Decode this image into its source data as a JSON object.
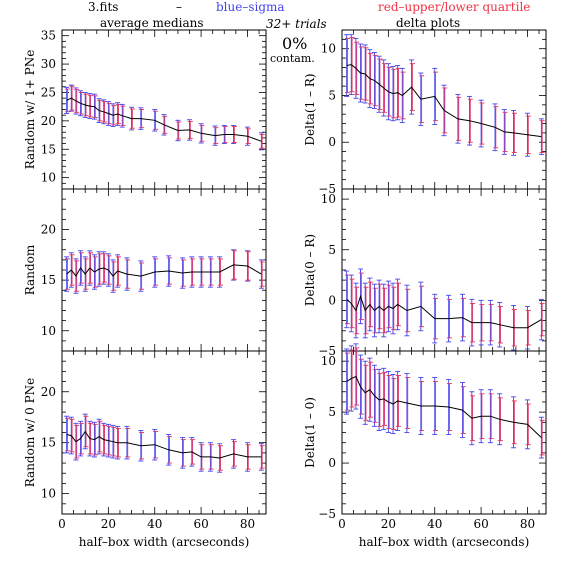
{
  "header": {
    "file_label": "3.fits",
    "dash": "–",
    "blue_label": "blue–sigma",
    "red_label": "red–upper/lower quartile",
    "left_title": "average medians",
    "right_title": "delta plots",
    "trials": "32+ trials",
    "percent": "0%",
    "contam": "contam."
  },
  "colors": {
    "line": "#000000",
    "blue": "#4444ee",
    "red": "#dd3366",
    "axis": "#000000"
  },
  "xlabel": "half–box width (arcseconds)",
  "chart_data": [
    {
      "type": "line",
      "column": "left",
      "row": 0,
      "ylabel": "Random w/ 1+ PNe",
      "xlim": [
        0,
        88
      ],
      "ylim": [
        8,
        36
      ],
      "xticks": [
        0,
        20,
        40,
        60,
        80
      ],
      "yticks": [
        10,
        15,
        20,
        25,
        30,
        35
      ],
      "x": [
        2,
        4,
        6,
        8,
        10,
        12,
        14,
        16,
        18,
        20,
        22,
        24,
        26,
        30,
        34,
        40,
        44,
        50,
        55,
        60,
        66,
        70,
        74,
        80,
        86
      ],
      "y": [
        23.6,
        24.0,
        23.5,
        23.1,
        22.8,
        22.6,
        22.5,
        21.8,
        21.6,
        21.3,
        21.0,
        21.2,
        20.9,
        20.4,
        20.4,
        20.1,
        19.3,
        18.3,
        18.4,
        17.8,
        17.4,
        17.6,
        17.6,
        17.3,
        16.4
      ],
      "sigma_err": [
        2.3,
        2.3,
        2.3,
        2.2,
        2.2,
        2.2,
        2.2,
        2.1,
        2.1,
        2.1,
        2.0,
        2.0,
        2.0,
        2.0,
        1.9,
        1.9,
        1.8,
        1.8,
        1.8,
        1.7,
        1.7,
        1.6,
        1.6,
        1.6,
        1.5
      ],
      "quartile_err": [
        2.0,
        2.1,
        2.0,
        1.9,
        1.9,
        1.9,
        1.9,
        1.8,
        1.8,
        1.8,
        1.7,
        1.7,
        1.7,
        1.7,
        1.6,
        1.6,
        1.5,
        1.5,
        1.5,
        1.4,
        1.4,
        1.4,
        1.4,
        1.3,
        1.2
      ]
    },
    {
      "type": "line",
      "column": "left",
      "row": 1,
      "ylabel": "Random",
      "xlim": [
        0,
        88
      ],
      "ylim": [
        8,
        24
      ],
      "xticks": [
        0,
        20,
        40,
        60,
        80
      ],
      "yticks": [
        10,
        15,
        20
      ],
      "x": [
        2,
        4,
        6,
        8,
        10,
        12,
        14,
        16,
        18,
        20,
        22,
        24,
        28,
        34,
        40,
        46,
        52,
        56,
        60,
        64,
        68,
        74,
        80,
        86
      ],
      "y": [
        15.6,
        16.0,
        15.4,
        16.2,
        15.6,
        16.2,
        15.8,
        16.1,
        16.2,
        16.0,
        15.4,
        15.9,
        15.6,
        15.4,
        15.8,
        15.9,
        15.7,
        15.8,
        15.8,
        15.8,
        15.8,
        16.5,
        16.4,
        15.6
      ],
      "sigma_err": [
        1.7,
        1.7,
        1.7,
        1.7,
        1.7,
        1.7,
        1.7,
        1.7,
        1.6,
        1.6,
        1.6,
        1.6,
        1.6,
        1.5,
        1.5,
        1.5,
        1.5,
        1.5,
        1.5,
        1.5,
        1.5,
        1.5,
        1.5,
        1.4
      ],
      "quartile_err": [
        1.5,
        1.5,
        1.5,
        1.5,
        1.5,
        1.5,
        1.5,
        1.5,
        1.4,
        1.4,
        1.4,
        1.4,
        1.4,
        1.3,
        1.3,
        1.3,
        1.3,
        1.3,
        1.3,
        1.3,
        1.3,
        1.4,
        1.4,
        1.2
      ]
    },
    {
      "type": "line",
      "column": "left",
      "row": 2,
      "ylabel": "Random w/ 0 PNe",
      "xlim": [
        0,
        88
      ],
      "ylim": [
        8,
        24
      ],
      "xticks": [
        0,
        20,
        40,
        60,
        80
      ],
      "yticks": [
        10,
        15,
        20
      ],
      "x": [
        2,
        4,
        6,
        8,
        10,
        12,
        14,
        16,
        18,
        20,
        22,
        24,
        28,
        34,
        40,
        46,
        52,
        56,
        60,
        64,
        68,
        74,
        80,
        86
      ],
      "y": [
        15.8,
        15.7,
        15.1,
        15.4,
        16.1,
        15.4,
        15.3,
        15.6,
        15.3,
        15.2,
        15.1,
        15.0,
        15.0,
        14.7,
        14.8,
        14.3,
        14.0,
        14.1,
        13.6,
        13.6,
        13.5,
        13.9,
        13.6,
        13.6
      ],
      "sigma_err": [
        1.8,
        1.8,
        1.8,
        1.7,
        1.7,
        1.7,
        1.7,
        1.7,
        1.6,
        1.6,
        1.6,
        1.6,
        1.6,
        1.5,
        1.5,
        1.5,
        1.5,
        1.4,
        1.4,
        1.4,
        1.4,
        1.4,
        1.4,
        1.3
      ],
      "quartile_err": [
        1.6,
        1.6,
        1.6,
        1.5,
        1.5,
        1.5,
        1.5,
        1.5,
        1.4,
        1.4,
        1.4,
        1.4,
        1.4,
        1.3,
        1.3,
        1.3,
        1.3,
        1.2,
        1.2,
        1.2,
        1.2,
        1.2,
        1.2,
        1.1
      ]
    },
    {
      "type": "line",
      "column": "right",
      "row": 0,
      "ylabel": "Delta(1 – R)",
      "xlim": [
        0,
        88
      ],
      "ylim": [
        -5,
        12
      ],
      "xticks": [
        0,
        20,
        40,
        60,
        80
      ],
      "yticks": [
        -5,
        0,
        5,
        10
      ],
      "x": [
        2,
        4,
        6,
        8,
        10,
        12,
        14,
        16,
        18,
        20,
        22,
        24,
        26,
        30,
        34,
        40,
        44,
        50,
        55,
        60,
        66,
        70,
        74,
        80,
        86
      ],
      "y": [
        8.2,
        8.3,
        7.9,
        7.4,
        7.3,
        6.8,
        6.6,
        6.2,
        5.8,
        5.4,
        5.2,
        5.3,
        5.0,
        5.9,
        4.6,
        4.9,
        3.4,
        2.5,
        2.3,
        2.0,
        1.6,
        1.1,
        1.0,
        0.8,
        0.6
      ],
      "sigma_err": [
        3.3,
        3.2,
        3.2,
        3.1,
        3.1,
        3.1,
        3.0,
        3.0,
        3.0,
        3.0,
        2.9,
        2.9,
        2.9,
        2.9,
        2.8,
        3.0,
        2.7,
        2.6,
        2.6,
        2.5,
        2.5,
        2.4,
        2.4,
        2.3,
        1.9
      ],
      "quartile_err": [
        2.9,
        2.9,
        2.8,
        2.8,
        2.8,
        2.7,
        2.7,
        2.7,
        2.6,
        2.6,
        2.6,
        2.6,
        2.5,
        2.5,
        2.5,
        2.6,
        2.4,
        2.3,
        2.3,
        2.2,
        2.2,
        2.1,
        2.1,
        2.0,
        1.7
      ]
    },
    {
      "type": "line",
      "column": "right",
      "row": 1,
      "ylabel": "Delta(0 – R)",
      "xlim": [
        0,
        88
      ],
      "ylim": [
        -5,
        11
      ],
      "xticks": [
        0,
        20,
        40,
        60,
        80
      ],
      "yticks": [
        -5,
        0,
        5,
        10
      ],
      "x": [
        2,
        4,
        6,
        8,
        10,
        12,
        14,
        16,
        18,
        20,
        22,
        24,
        28,
        34,
        40,
        46,
        52,
        56,
        60,
        64,
        68,
        74,
        80,
        86
      ],
      "y": [
        0.1,
        -0.3,
        -1.0,
        0.4,
        -1.0,
        -0.4,
        -1.0,
        -0.6,
        -1.0,
        -0.6,
        -0.8,
        -0.4,
        -1.0,
        -0.6,
        -1.8,
        -1.8,
        -1.7,
        -2.2,
        -2.2,
        -2.2,
        -2.4,
        -2.7,
        -2.7,
        -1.9
      ],
      "sigma_err": [
        2.8,
        2.8,
        2.7,
        2.7,
        2.7,
        2.6,
        2.6,
        2.6,
        2.6,
        2.5,
        2.5,
        2.5,
        2.5,
        2.4,
        2.4,
        2.3,
        2.3,
        2.3,
        2.2,
        2.2,
        2.2,
        2.2,
        2.1,
        2.0
      ],
      "quartile_err": [
        2.4,
        2.4,
        2.3,
        2.3,
        2.3,
        2.2,
        2.2,
        2.2,
        2.2,
        2.1,
        2.1,
        2.1,
        2.1,
        2.0,
        2.0,
        1.9,
        1.9,
        1.9,
        1.8,
        1.8,
        1.8,
        1.8,
        1.7,
        1.6
      ]
    },
    {
      "type": "line",
      "column": "right",
      "row": 2,
      "ylabel": "Delta(1 – 0)",
      "xlim": [
        0,
        88
      ],
      "ylim": [
        -5,
        11
      ],
      "xticks": [
        0,
        20,
        40,
        60,
        80
      ],
      "yticks": [
        -5,
        0,
        5,
        10
      ],
      "x": [
        2,
        4,
        6,
        8,
        10,
        12,
        14,
        16,
        18,
        20,
        22,
        24,
        28,
        34,
        40,
        46,
        52,
        56,
        60,
        64,
        68,
        74,
        80,
        86
      ],
      "y": [
        8.0,
        8.3,
        8.5,
        7.5,
        6.9,
        7.2,
        6.6,
        6.2,
        6.3,
        6.0,
        5.8,
        6.1,
        5.9,
        5.6,
        5.6,
        5.5,
        5.2,
        4.4,
        4.6,
        4.6,
        4.3,
        4.0,
        3.8,
        2.5
      ],
      "sigma_err": [
        3.2,
        3.2,
        3.2,
        3.1,
        3.1,
        3.1,
        3.0,
        3.0,
        3.0,
        3.0,
        2.9,
        2.9,
        2.9,
        2.8,
        2.8,
        2.7,
        2.7,
        2.6,
        2.6,
        2.6,
        2.5,
        2.5,
        2.4,
        2.0
      ],
      "quartile_err": [
        2.8,
        2.8,
        2.8,
        2.7,
        2.7,
        2.7,
        2.6,
        2.6,
        2.6,
        2.6,
        2.5,
        2.5,
        2.5,
        2.4,
        2.4,
        2.3,
        2.3,
        2.2,
        2.2,
        2.2,
        2.1,
        2.1,
        2.0,
        1.7
      ]
    }
  ]
}
